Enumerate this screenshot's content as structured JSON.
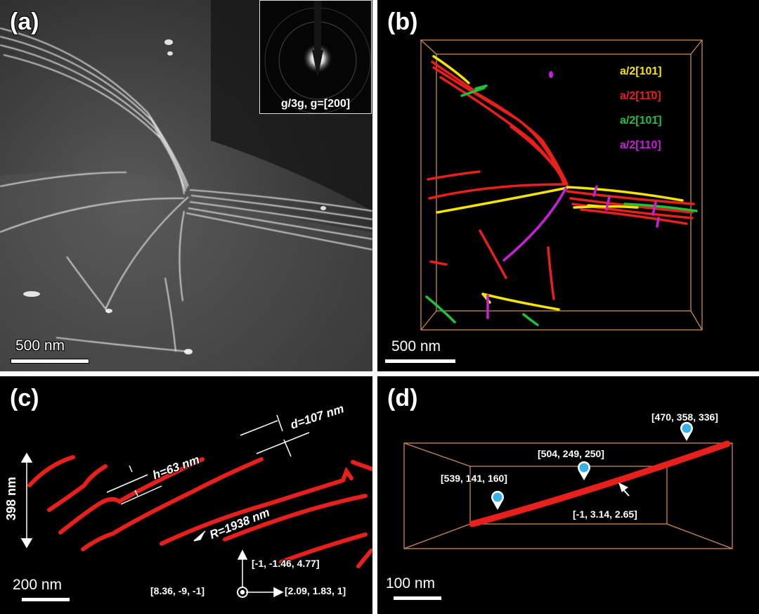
{
  "panels": {
    "a": {
      "label": "(a)",
      "scalebar": "500 nm",
      "inset_caption": "g/3g, g=[200]"
    },
    "b": {
      "label": "(b)",
      "scalebar": "500 nm",
      "legend": [
        {
          "text": "a/2[101]",
          "color": "#f5e400"
        },
        {
          "text": "a/2[11̄0]",
          "color": "#e8201c"
        },
        {
          "text": "a/2[101̄]",
          "color": "#1fc23a"
        },
        {
          "text": "a/2[110]",
          "color": "#c81fd8"
        }
      ]
    },
    "c": {
      "label": "(c)",
      "scalebar": "200 nm",
      "height_label": "398 nm",
      "h_label": "h=63 nm",
      "d_label": "d=107 nm",
      "r_label": "R=1938 nm",
      "axis_up": "[-1, -1.46, 4.77]",
      "axis_right": "[2.09, 1.83, 1]",
      "axis_out": "[8.36, -9, -1]"
    },
    "d": {
      "label": "(d)",
      "scalebar": "100 nm",
      "points": [
        "[470, 358, 336]",
        "[504, 249, 250]",
        "[539, 141, 160]"
      ],
      "direction": "[-1, 3.14, 2.65]"
    }
  },
  "colors": {
    "red": "#e8201c",
    "yellow": "#f5e400",
    "green": "#1fc23a",
    "magenta": "#c81fd8",
    "box": "#c98a52",
    "marker": "#3ab0e8"
  }
}
